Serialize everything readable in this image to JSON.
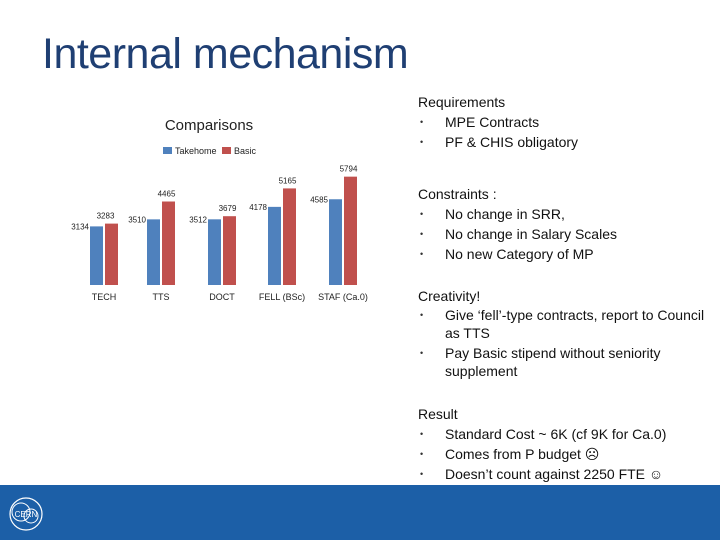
{
  "slide": {
    "title": "Internal mechanism"
  },
  "chart_data": {
    "type": "bar",
    "title": "Comparisons",
    "categories": [
      "TECH",
      "TTS",
      "DOCT",
      "FELL (BSc)",
      "STAF (Ca.0)"
    ],
    "series": [
      {
        "name": "Takehome",
        "values": [
          3134,
          3510,
          3512,
          4178,
          4585
        ],
        "labels": [
          "3134",
          "3510",
          "3512",
          "4178",
          "4585"
        ],
        "color": "#4f81bd"
      },
      {
        "name": "Basic",
        "values": [
          3283,
          4465,
          3679,
          5165,
          5794
        ],
        "labels": [
          "3283",
          "4465",
          "3679",
          "5165",
          "5794"
        ],
        "color": "#c0504d"
      }
    ],
    "legend": "top",
    "grid": false
  },
  "right": {
    "requirements": {
      "heading": "Requirements",
      "items": [
        "MPE Contracts",
        "PF & CHIS obligatory"
      ]
    },
    "constraints": {
      "heading": "Constraints :",
      "items": [
        "No change in SRR,",
        "No change in Salary Scales",
        "No new Category of MP"
      ]
    },
    "creativity": {
      "heading": "Creativity!",
      "items": [
        "Give ‘fell’-type contracts, report to Council as TTS",
        "Pay Basic stipend without seniority supplement"
      ]
    },
    "result": {
      "heading": "Result",
      "items": [
        "Standard Cost ~ 6K (cf 9K for Ca.0)",
        "Comes from P budget ☹",
        "Doesn’t count against 2250 FTE ☺"
      ]
    },
    "bullet": "•"
  },
  "footer": {
    "logo_text": "CERN",
    "color": "#1c5fa7",
    "logo_icon": "cern-logo-icon"
  }
}
